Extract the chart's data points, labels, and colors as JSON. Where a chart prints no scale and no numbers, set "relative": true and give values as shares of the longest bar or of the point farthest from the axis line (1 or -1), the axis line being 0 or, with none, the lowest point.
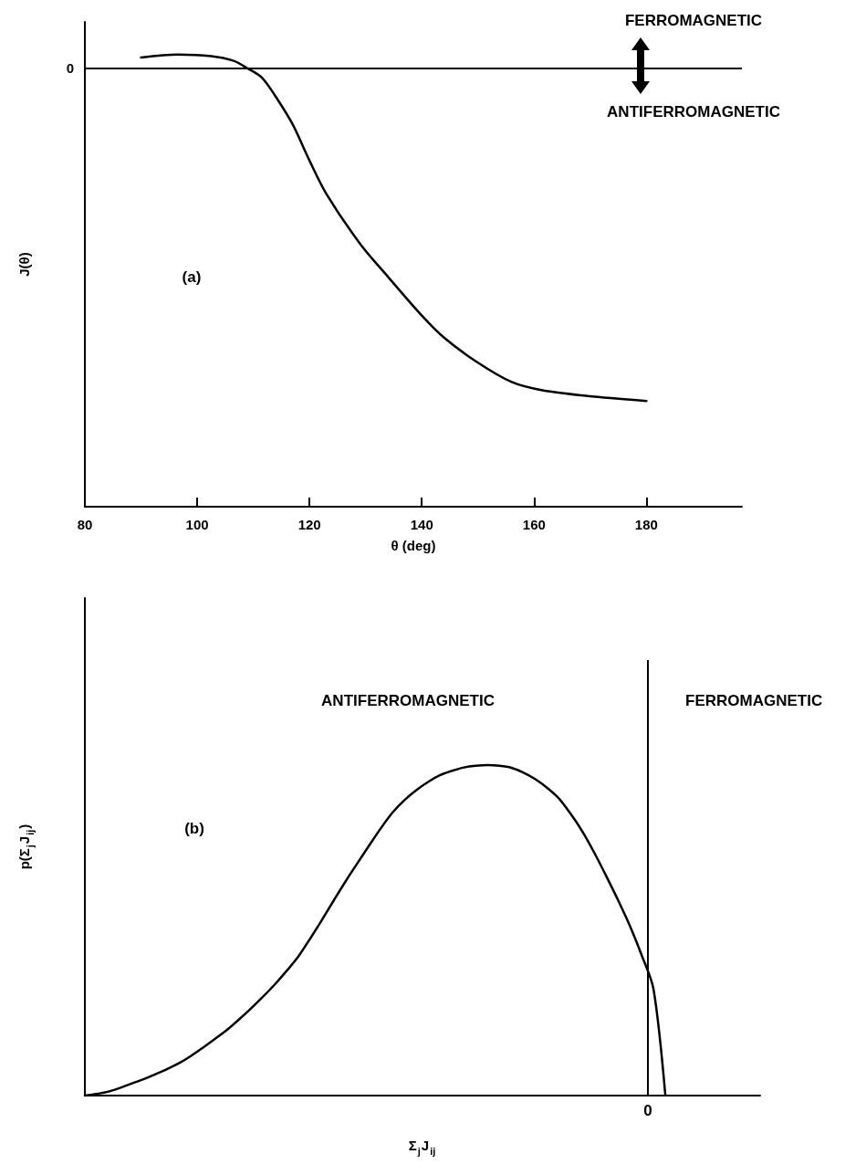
{
  "chart_data": [
    {
      "type": "line",
      "xlabel": "θ (deg)",
      "ylabel": "J(θ)",
      "relative": true,
      "color": "#000000",
      "marker": "none",
      "line_style": "solid",
      "x": [
        90,
        96.5,
        102.5,
        106.5,
        109,
        111.5,
        114,
        117,
        120,
        123,
        129,
        134,
        140,
        144,
        150,
        156,
        161.5,
        169.5,
        180
      ],
      "values": [
        0.033,
        0.042,
        0.037,
        0.023,
        0,
        -0.027,
        -0.085,
        -0.168,
        -0.277,
        -0.377,
        -0.527,
        -0.627,
        -0.743,
        -0.81,
        -0.885,
        -0.943,
        -0.968,
        -0.985,
        -1
      ],
      "xlim": [
        80,
        197
      ],
      "xticks": [
        80,
        100,
        120,
        140,
        160,
        180
      ],
      "ref_lines": [
        {
          "axis": "y",
          "value": 0,
          "label": "0"
        }
      ],
      "annotations": [
        "(a)",
        "FERROMAGNETIC",
        "ANTIFERROMAGNETIC"
      ]
    },
    {
      "type": "line",
      "xlabel": "Σ$_{j}$J$_{ij}$",
      "ylabel": "p(Σ$_{j}$J$_{ij}$)",
      "relative": true,
      "color": "#000000",
      "marker": "none",
      "line_style": "solid",
      "categories": [
        null,
        null,
        null,
        null,
        null,
        null,
        null,
        null,
        null,
        null,
        null,
        null,
        null,
        null,
        null,
        null,
        null,
        null,
        null,
        null,
        null,
        null,
        null,
        null,
        null,
        null,
        null,
        null,
        null,
        null,
        null,
        null,
        null,
        null,
        null,
        null,
        null,
        null,
        null,
        null,
        null,
        null,
        null,
        null,
        null,
        null,
        null,
        null,
        null,
        null,
        null,
        null,
        null,
        null,
        null,
        null,
        null,
        null
      ],
      "values": [
        0,
        0.005,
        0.012,
        0.024,
        0.037,
        0.05,
        0.065,
        0.081,
        0.099,
        0.121,
        0.146,
        0.172,
        0.199,
        0.23,
        0.263,
        0.298,
        0.335,
        0.376,
        0.42,
        0.474,
        0.531,
        0.59,
        0.648,
        0.703,
        0.757,
        0.81,
        0.858,
        0.895,
        0.925,
        0.95,
        0.97,
        0.983,
        0.993,
        0.998,
        1,
        0.998,
        0.992,
        0.978,
        0.958,
        0.932,
        0.9,
        0.853,
        0.799,
        0.735,
        0.665,
        0.592,
        0.514,
        0.425,
        0.322,
        0,
        null,
        null,
        null,
        null,
        null,
        null,
        null,
        null
      ],
      "annotations": [
        "(b)",
        "ANTIFERROMAGNETIC",
        "FERROMAGNETIC",
        "0"
      ]
    }
  ]
}
